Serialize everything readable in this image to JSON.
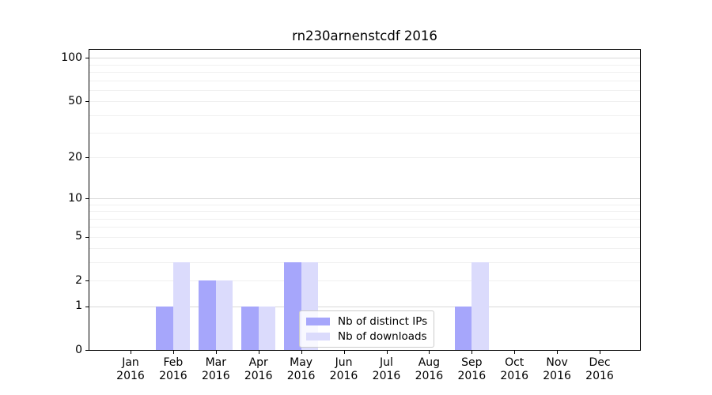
{
  "figure": {
    "title": "rn230arnenstcdf 2016",
    "background_color": "#ffffff",
    "text_color": "#000000"
  },
  "chart_data": {
    "type": "bar",
    "title": "rn230arnenstcdf 2016",
    "xlabel": "",
    "ylabel": "",
    "categories": [
      "Jan 2016",
      "Feb 2016",
      "Mar 2016",
      "Apr 2016",
      "May 2016",
      "Jun 2016",
      "Jul 2016",
      "Aug 2016",
      "Sep 2016",
      "Oct 2016",
      "Nov 2016",
      "Dec 2016"
    ],
    "series": [
      {
        "name": "Nb of distinct IPs",
        "key": "distinct-ips",
        "color": "#a6a6fb",
        "values": [
          0,
          1,
          2,
          1,
          3,
          0,
          0,
          0,
          1,
          0,
          0,
          0
        ]
      },
      {
        "name": "Nb of downloads",
        "key": "downloads",
        "color": "#dbdbfc",
        "values": [
          0,
          3,
          2,
          1,
          3,
          0,
          0,
          0,
          3,
          0,
          0,
          0
        ]
      }
    ],
    "yscale": "log10(1+v)",
    "ylim": [
      0,
      114
    ],
    "y_ticks": {
      "values": [
        0,
        1,
        2,
        5,
        10,
        20,
        50,
        100
      ],
      "labels": [
        "0",
        "1",
        "2",
        "5",
        "10",
        "20",
        "50",
        "100"
      ]
    },
    "grid": {
      "shown": true,
      "major_values": [
        1,
        10,
        100
      ],
      "minor_values": [
        2,
        3,
        4,
        5,
        6,
        7,
        8,
        9,
        20,
        30,
        40,
        50,
        60,
        70,
        80,
        90
      ],
      "major_color": "#d9d9d9",
      "minor_color": "#f0f0f0"
    },
    "legend": {
      "position": "lower center",
      "border_color": "#cccccc",
      "entries": [
        "Nb of distinct IPs",
        "Nb of downloads"
      ]
    },
    "bar_layout": "grouped-adjacent"
  }
}
